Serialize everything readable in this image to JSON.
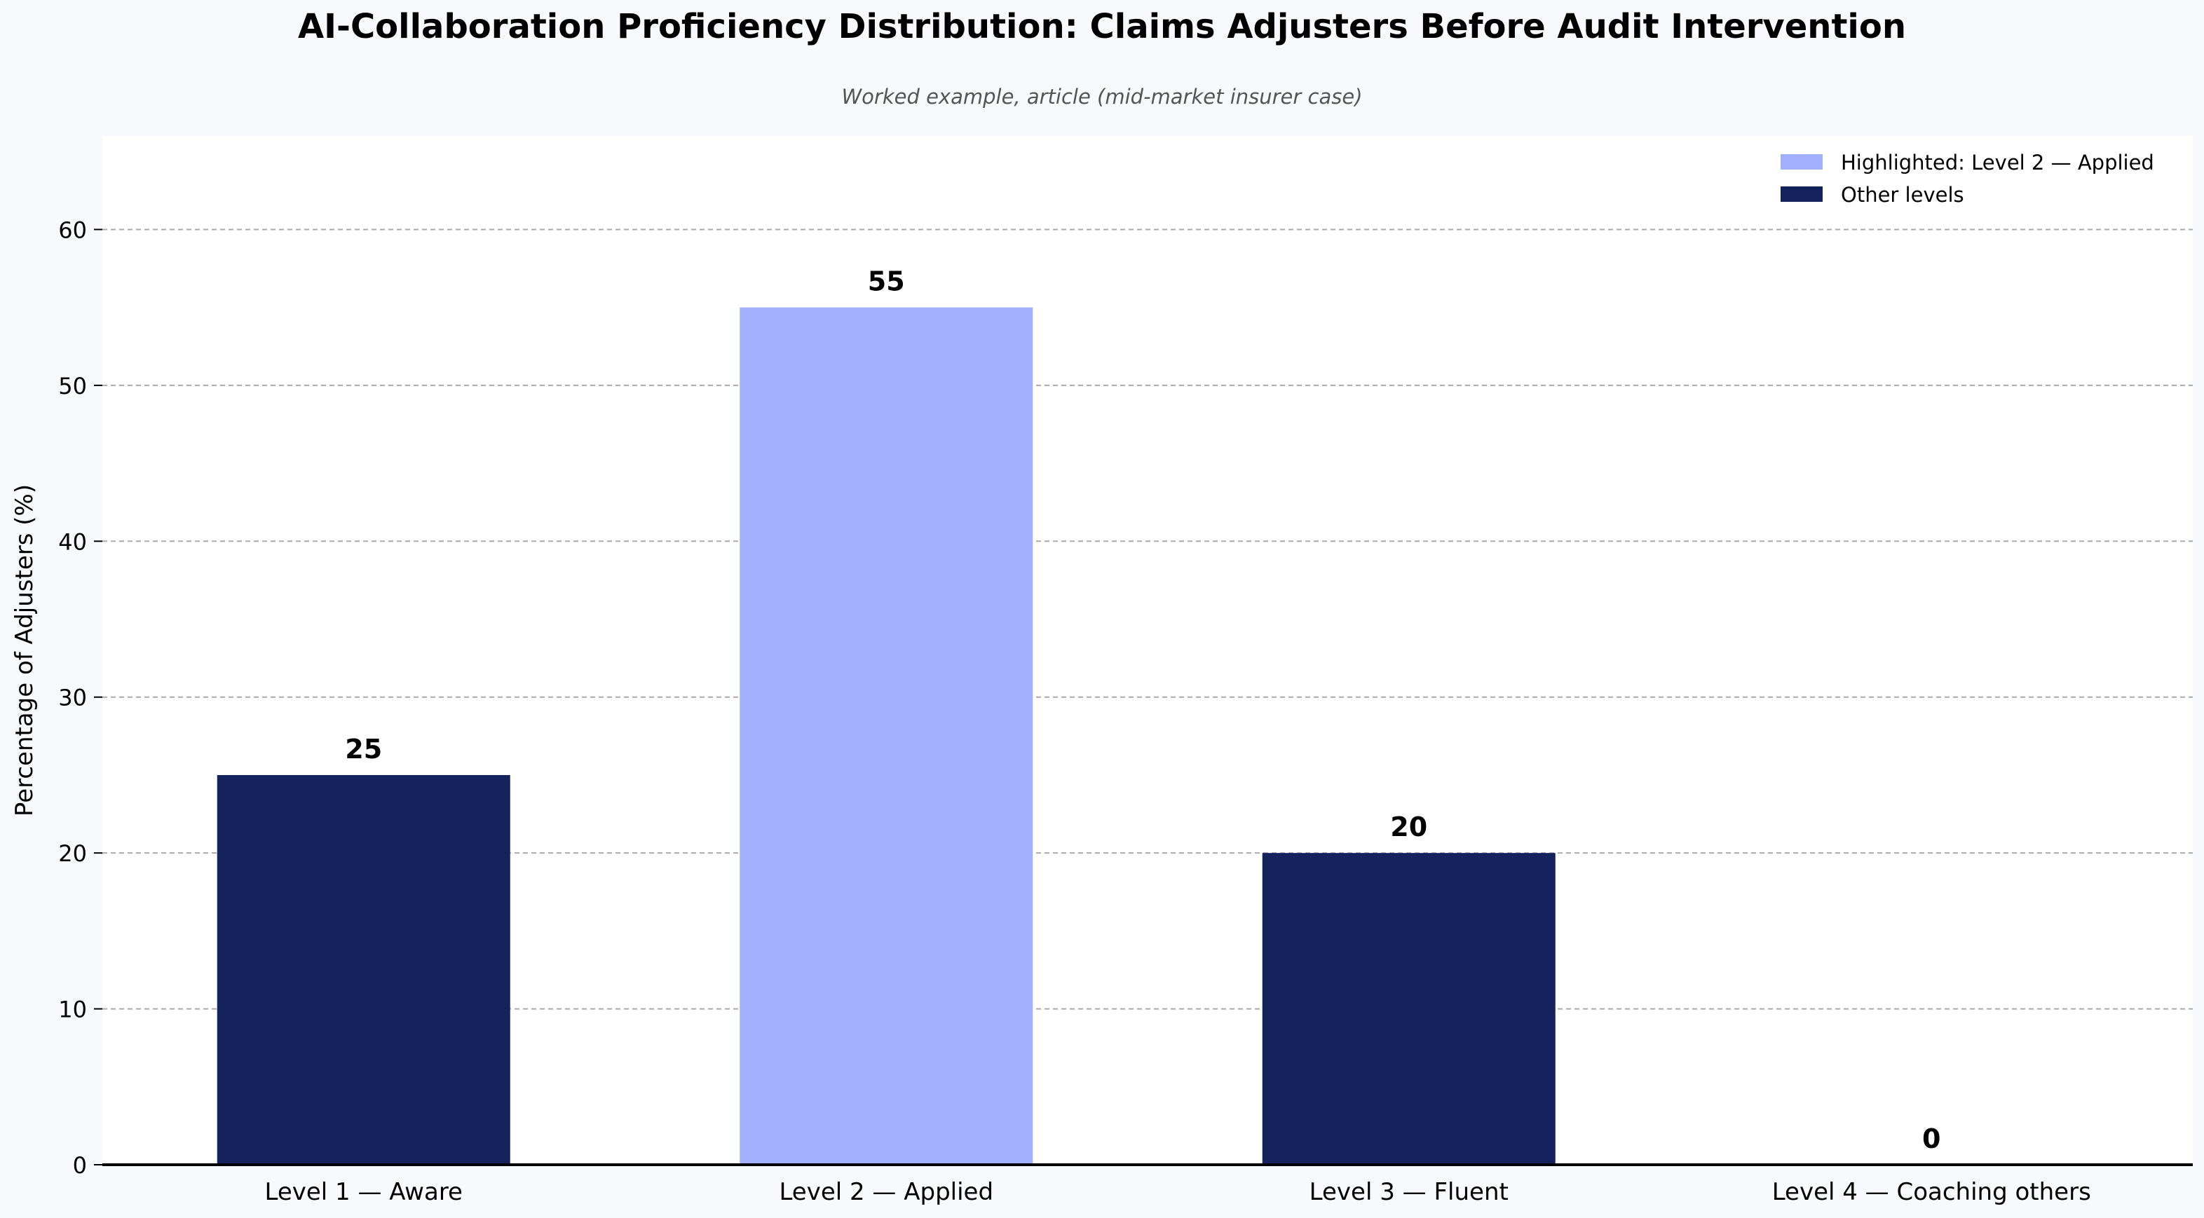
{
  "chart_data": {
    "type": "bar",
    "title": "AI-Collaboration Proficiency Distribution: Claims Adjusters Before Audit Intervention",
    "subtitle": "Worked example, article (mid-market insurer case)",
    "xlabel": "",
    "ylabel": "Percentage of Adjusters (%)",
    "categories": [
      "Level 1 — Aware",
      "Level 2 — Applied",
      "Level 3 — Fluent",
      "Level 4 — Coaching others"
    ],
    "values": [
      25,
      55,
      20,
      0
    ],
    "highlight_index": 1,
    "ylim": [
      0,
      66
    ],
    "yticks": [
      0,
      10,
      20,
      30,
      40,
      50,
      60
    ],
    "grid": true,
    "legend_position": "top-right",
    "legend": [
      {
        "label": "Highlighted: Level 2 — Applied",
        "color": "#a0b0fd"
      },
      {
        "label": "Other levels",
        "color": "#14235c"
      }
    ],
    "colors": {
      "highlight": "#a0b0fd",
      "other": "#14235c",
      "plot_background": "#ffffff",
      "page_background": "#f7f9fc",
      "grid": "#aaaaaa",
      "axis": "#000000"
    }
  }
}
